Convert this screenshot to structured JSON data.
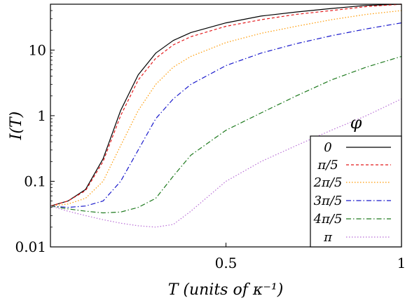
{
  "chart_data": {
    "type": "line",
    "xlabel": "T (units of κ⁻¹)",
    "ylabel": "I(T)",
    "xlim": [
      0,
      1
    ],
    "ylim": [
      0.01,
      50
    ],
    "yscale": "log",
    "grid": false,
    "x_ticks": [
      {
        "value": 0.5,
        "label": "0.5"
      },
      {
        "value": 1,
        "label": "1"
      }
    ],
    "y_ticks": [
      {
        "value": 0.01,
        "label": "0.01"
      },
      {
        "value": 0.1,
        "label": "0.1"
      },
      {
        "value": 1,
        "label": "1"
      },
      {
        "value": 10,
        "label": "10"
      }
    ],
    "legend": {
      "title": "φ",
      "placement": "bottom-right"
    },
    "series": [
      {
        "name": "0",
        "color": "#000000",
        "dash": "solid",
        "x": [
          0,
          0.05,
          0.1,
          0.15,
          0.2,
          0.25,
          0.3,
          0.35,
          0.4,
          0.5,
          0.6,
          0.7,
          0.8,
          0.9,
          1.0
        ],
        "y": [
          0.042,
          0.05,
          0.075,
          0.22,
          1.2,
          4.2,
          9.0,
          14,
          18.5,
          26,
          33,
          38,
          43,
          48,
          50
        ]
      },
      {
        "name": "π/5",
        "color": "#e41a1c",
        "dash": "4,3",
        "x": [
          0,
          0.05,
          0.1,
          0.15,
          0.2,
          0.25,
          0.3,
          0.35,
          0.4,
          0.5,
          0.6,
          0.7,
          0.8,
          0.9,
          1.0
        ],
        "y": [
          0.042,
          0.05,
          0.072,
          0.2,
          1.0,
          3.5,
          7.5,
          12,
          16,
          23,
          29,
          35,
          40,
          46,
          50
        ]
      },
      {
        "name": "2π/5",
        "color": "#ff9900",
        "dash": "1.5,2.5",
        "x": [
          0,
          0.05,
          0.1,
          0.15,
          0.2,
          0.25,
          0.3,
          0.35,
          0.4,
          0.5,
          0.6,
          0.7,
          0.8,
          0.9,
          1.0
        ],
        "y": [
          0.042,
          0.045,
          0.055,
          0.1,
          0.35,
          1.2,
          3.0,
          5.5,
          8.0,
          13,
          18,
          23,
          29,
          35,
          40
        ]
      },
      {
        "name": "3π/5",
        "color": "#1a1acc",
        "dash": "7,3,1.5,3",
        "x": [
          0,
          0.05,
          0.1,
          0.15,
          0.2,
          0.25,
          0.3,
          0.35,
          0.4,
          0.5,
          0.6,
          0.7,
          0.8,
          0.9,
          1.0
        ],
        "y": [
          0.042,
          0.04,
          0.042,
          0.05,
          0.1,
          0.3,
          0.9,
          1.8,
          3.0,
          5.8,
          9.0,
          12.5,
          16.5,
          21,
          26
        ]
      },
      {
        "name": "4π/5",
        "color": "#1e7a1e",
        "dash": "7,3,1.5,3",
        "x": [
          0,
          0.05,
          0.1,
          0.15,
          0.2,
          0.25,
          0.3,
          0.35,
          0.4,
          0.5,
          0.6,
          0.7,
          0.8,
          0.9,
          1.0
        ],
        "y": [
          0.042,
          0.038,
          0.035,
          0.033,
          0.034,
          0.04,
          0.055,
          0.12,
          0.25,
          0.6,
          1.1,
          2.0,
          3.5,
          5.5,
          8.0
        ]
      },
      {
        "name": "π",
        "color": "#b86cd6",
        "dash": "1.5,2.5",
        "x": [
          0,
          0.05,
          0.1,
          0.15,
          0.2,
          0.25,
          0.3,
          0.35,
          0.4,
          0.5,
          0.6,
          0.7,
          0.8,
          0.9,
          1.0
        ],
        "y": [
          0.042,
          0.035,
          0.03,
          0.026,
          0.023,
          0.021,
          0.02,
          0.022,
          0.035,
          0.1,
          0.2,
          0.35,
          0.6,
          1.0,
          1.8
        ]
      }
    ]
  }
}
